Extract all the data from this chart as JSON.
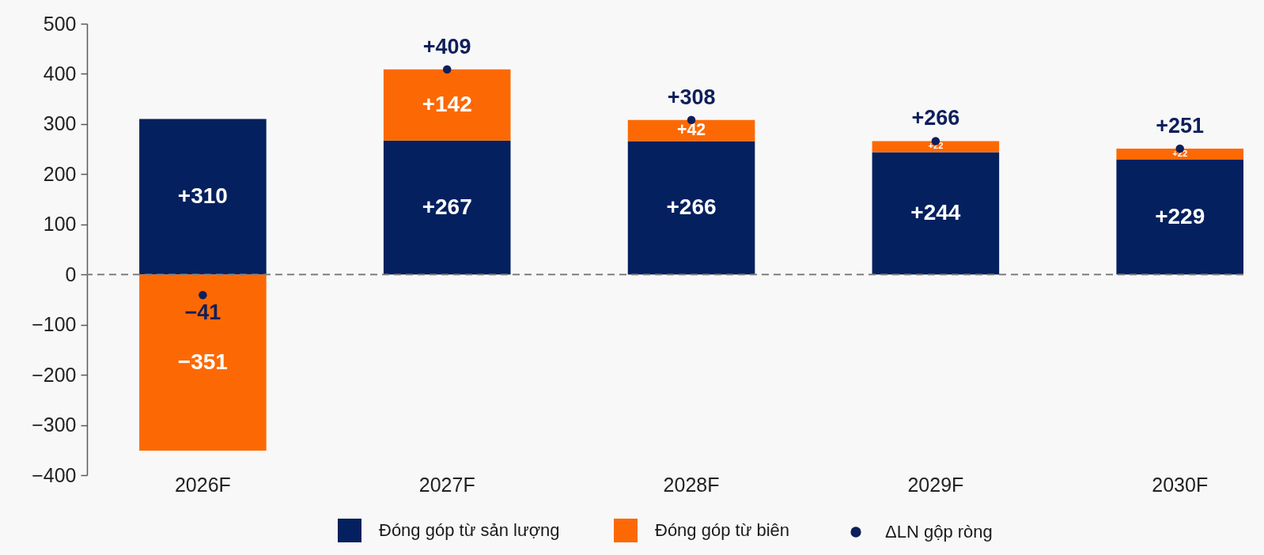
{
  "chart_data": {
    "type": "bar",
    "stacked": true,
    "categories": [
      "2026F",
      "2027F",
      "2028F",
      "2029F",
      "2030F"
    ],
    "series": [
      {
        "name": "Đóng góp từ sản lượng",
        "color": "#04205e",
        "values": [
          310,
          267,
          266,
          244,
          229
        ],
        "value_labels": [
          "+310",
          "+267",
          "+266",
          "+244",
          "+229"
        ]
      },
      {
        "name": "Đóng góp từ biên",
        "color": "#fc6904",
        "values": [
          -351,
          142,
          42,
          22,
          22
        ],
        "value_labels": [
          "−351",
          "+142",
          "+42",
          "+22",
          "+22"
        ]
      },
      {
        "name": "ΔLN gộp ròng",
        "type": "scatter",
        "color": "#0e1f5b",
        "values": [
          -41,
          409,
          308,
          266,
          251
        ],
        "value_labels": [
          "−41",
          "+409",
          "+308",
          "+266",
          "+251"
        ]
      }
    ],
    "ylim": [
      -400,
      500
    ],
    "yticks": [
      {
        "value": -400,
        "label": "−400"
      },
      {
        "value": -300,
        "label": "−300"
      },
      {
        "value": -200,
        "label": "−200"
      },
      {
        "value": -100,
        "label": "−100"
      },
      0,
      100,
      200,
      300,
      400,
      500
    ],
    "ref_lines": [
      {
        "axis": "y",
        "value": 0,
        "color": "#7f7f7f",
        "line_style": "dashed"
      }
    ],
    "legend": "bottom",
    "marker": "circle"
  }
}
